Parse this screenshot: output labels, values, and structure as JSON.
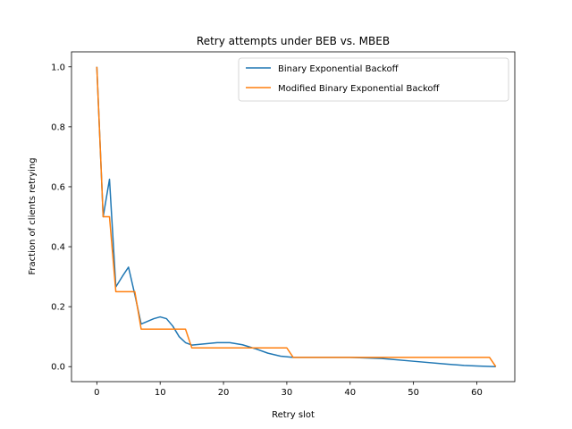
{
  "chart_data": {
    "type": "line",
    "title": "Retry attempts under BEB vs. MBEB",
    "xlabel": "Retry slot",
    "ylabel": "Fraction of clients retrying",
    "xlim": [
      -4.0,
      66.0
    ],
    "ylim": [
      -0.05,
      1.05
    ],
    "xticks": [
      0,
      10,
      20,
      30,
      40,
      50,
      60
    ],
    "yticks": [
      0.0,
      0.2,
      0.4,
      0.6,
      0.8,
      1.0
    ],
    "grid": false,
    "legend_position": "top-right",
    "series": [
      {
        "name": "Binary Exponential Backoff",
        "color": "#1f77b4",
        "points": [
          [
            0,
            1.0
          ],
          [
            1,
            0.5
          ],
          [
            2,
            0.625
          ],
          [
            3,
            0.266
          ],
          [
            4,
            0.3
          ],
          [
            5,
            0.332
          ],
          [
            6,
            0.24
          ],
          [
            7,
            0.142
          ],
          [
            8,
            0.151
          ],
          [
            9,
            0.16
          ],
          [
            10,
            0.166
          ],
          [
            11,
            0.16
          ],
          [
            12,
            0.135
          ],
          [
            13,
            0.1
          ],
          [
            14,
            0.08
          ],
          [
            15,
            0.072
          ],
          [
            17,
            0.076
          ],
          [
            19,
            0.08
          ],
          [
            21,
            0.08
          ],
          [
            23,
            0.073
          ],
          [
            25,
            0.06
          ],
          [
            27,
            0.045
          ],
          [
            29,
            0.035
          ],
          [
            31,
            0.031
          ],
          [
            35,
            0.031
          ],
          [
            40,
            0.031
          ],
          [
            45,
            0.027
          ],
          [
            50,
            0.018
          ],
          [
            55,
            0.009
          ],
          [
            58,
            0.004
          ],
          [
            60,
            0.002
          ],
          [
            63,
            0.0
          ]
        ]
      },
      {
        "name": "Modified Binary Exponential Backoff",
        "color": "#ff7f0e",
        "points": [
          [
            0,
            1.0
          ],
          [
            1,
            0.5
          ],
          [
            2,
            0.5
          ],
          [
            3,
            0.25
          ],
          [
            6,
            0.25
          ],
          [
            7,
            0.125
          ],
          [
            14,
            0.125
          ],
          [
            15,
            0.0625
          ],
          [
            30,
            0.0625
          ],
          [
            31,
            0.031
          ],
          [
            62,
            0.031
          ],
          [
            63,
            0.0
          ]
        ]
      }
    ]
  }
}
